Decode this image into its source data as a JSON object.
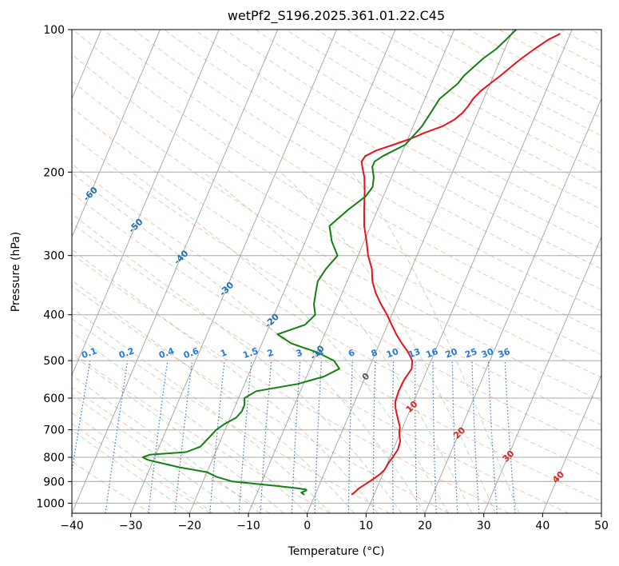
{
  "chart_data": {
    "type": "line",
    "title": "wetPf2_S196.2025.361.01.22.C45",
    "xlabel": "Temperature (°C)",
    "ylabel": "Pressure (hPa)",
    "xlim": [
      -40,
      50
    ],
    "ylim": [
      1050,
      100
    ],
    "y_scale": "log",
    "grid": true,
    "x_ticks": [
      -40,
      -30,
      -20,
      -10,
      0,
      10,
      20,
      30,
      40,
      50
    ],
    "y_ticks": [
      100,
      200,
      300,
      400,
      500,
      600,
      700,
      800,
      900,
      1000
    ],
    "skew_isotherms": [
      -100,
      -90,
      -80,
      -70,
      -60,
      -50,
      -40,
      -30,
      -20,
      -10,
      0,
      10,
      20,
      30,
      40
    ],
    "mixing_ratio_labels": [
      "0.1",
      "0.2",
      "0.4",
      "0.6",
      "1",
      "1.5",
      "2",
      "3",
      "4",
      "6",
      "8",
      "10",
      "13",
      "16",
      "20",
      "25",
      "30",
      "36"
    ],
    "colors": {
      "temperature": "#e8121c",
      "dewpoint": "#128012",
      "isotherm": "#888888",
      "dry_adiabat": "#f29270",
      "moist_adiabat": "#7cc47c",
      "mixing_ratio": "#2a7ad8",
      "isotherm_label_cold": "#1f6fb4",
      "isotherm_label_warm": "#d62728"
    },
    "series": [
      {
        "key": "temperature",
        "pressure": [
          960,
          950,
          930,
          900,
          870,
          850,
          820,
          800,
          770,
          740,
          710,
          690,
          670,
          650,
          630,
          610,
          580,
          550,
          520,
          500,
          480,
          460,
          440,
          420,
          400,
          380,
          360,
          340,
          320,
          300,
          280,
          260,
          240,
          220,
          205,
          195,
          190,
          185,
          180,
          175,
          170,
          165,
          160,
          155,
          150,
          145,
          140,
          135,
          130,
          125,
          120,
          115,
          110,
          105,
          102
        ],
        "temperature": [
          6.2,
          6.5,
          7.0,
          8.3,
          9.5,
          10.0,
          10.2,
          10.5,
          10.8,
          10.6,
          9.8,
          9.5,
          8.8,
          8.1,
          7.4,
          6.9,
          6.7,
          6.8,
          7.3,
          6.8,
          5.5,
          3.8,
          2.2,
          0.7,
          -0.8,
          -2.6,
          -4.3,
          -5.7,
          -6.7,
          -8.3,
          -9.6,
          -11.1,
          -12.3,
          -13.5,
          -14.6,
          -15.7,
          -16.2,
          -16.0,
          -14.5,
          -12.0,
          -9.5,
          -7.5,
          -5.0,
          -3.5,
          -2.6,
          -2.1,
          -1.8,
          -1.1,
          0.0,
          1.2,
          2.3,
          3.5,
          5.0,
          6.7,
          8.3
        ],
        "name": ""
      },
      {
        "key": "dewpoint",
        "pressure": [
          960,
          950,
          940,
          935,
          930,
          920,
          900,
          880,
          860,
          840,
          820,
          810,
          800,
          790,
          780,
          760,
          740,
          720,
          700,
          680,
          660,
          640,
          620,
          600,
          580,
          560,
          540,
          520,
          500,
          480,
          460,
          440,
          420,
          400,
          380,
          360,
          340,
          320,
          300,
          280,
          260,
          240,
          225,
          215,
          205,
          195,
          190,
          185,
          180,
          175,
          170,
          160,
          150,
          140,
          130,
          125,
          120,
          115,
          110,
          105,
          100
        ],
        "dewpoint": [
          -1.8,
          -2.5,
          -1.8,
          -2.0,
          -3.5,
          -7.0,
          -15.0,
          -18.0,
          -20.0,
          -25.0,
          -29.0,
          -31.0,
          -32.0,
          -31.0,
          -25.0,
          -23.0,
          -22.5,
          -22.0,
          -21.5,
          -20.5,
          -19.0,
          -18.5,
          -18.5,
          -19.0,
          -17.5,
          -11.0,
          -7.0,
          -5.0,
          -6.5,
          -10.0,
          -15.0,
          -18.0,
          -14.0,
          -13.0,
          -14.0,
          -14.5,
          -15.0,
          -14.5,
          -13.5,
          -15.5,
          -17.0,
          -15.0,
          -13.0,
          -12.5,
          -13.0,
          -14.0,
          -14.0,
          -13.0,
          -11.5,
          -10.0,
          -9.5,
          -8.5,
          -8.0,
          -7.5,
          -5.5,
          -5.0,
          -4.0,
          -3.0,
          -1.5,
          -0.5,
          0.5
        ],
        "name": ""
      }
    ]
  }
}
